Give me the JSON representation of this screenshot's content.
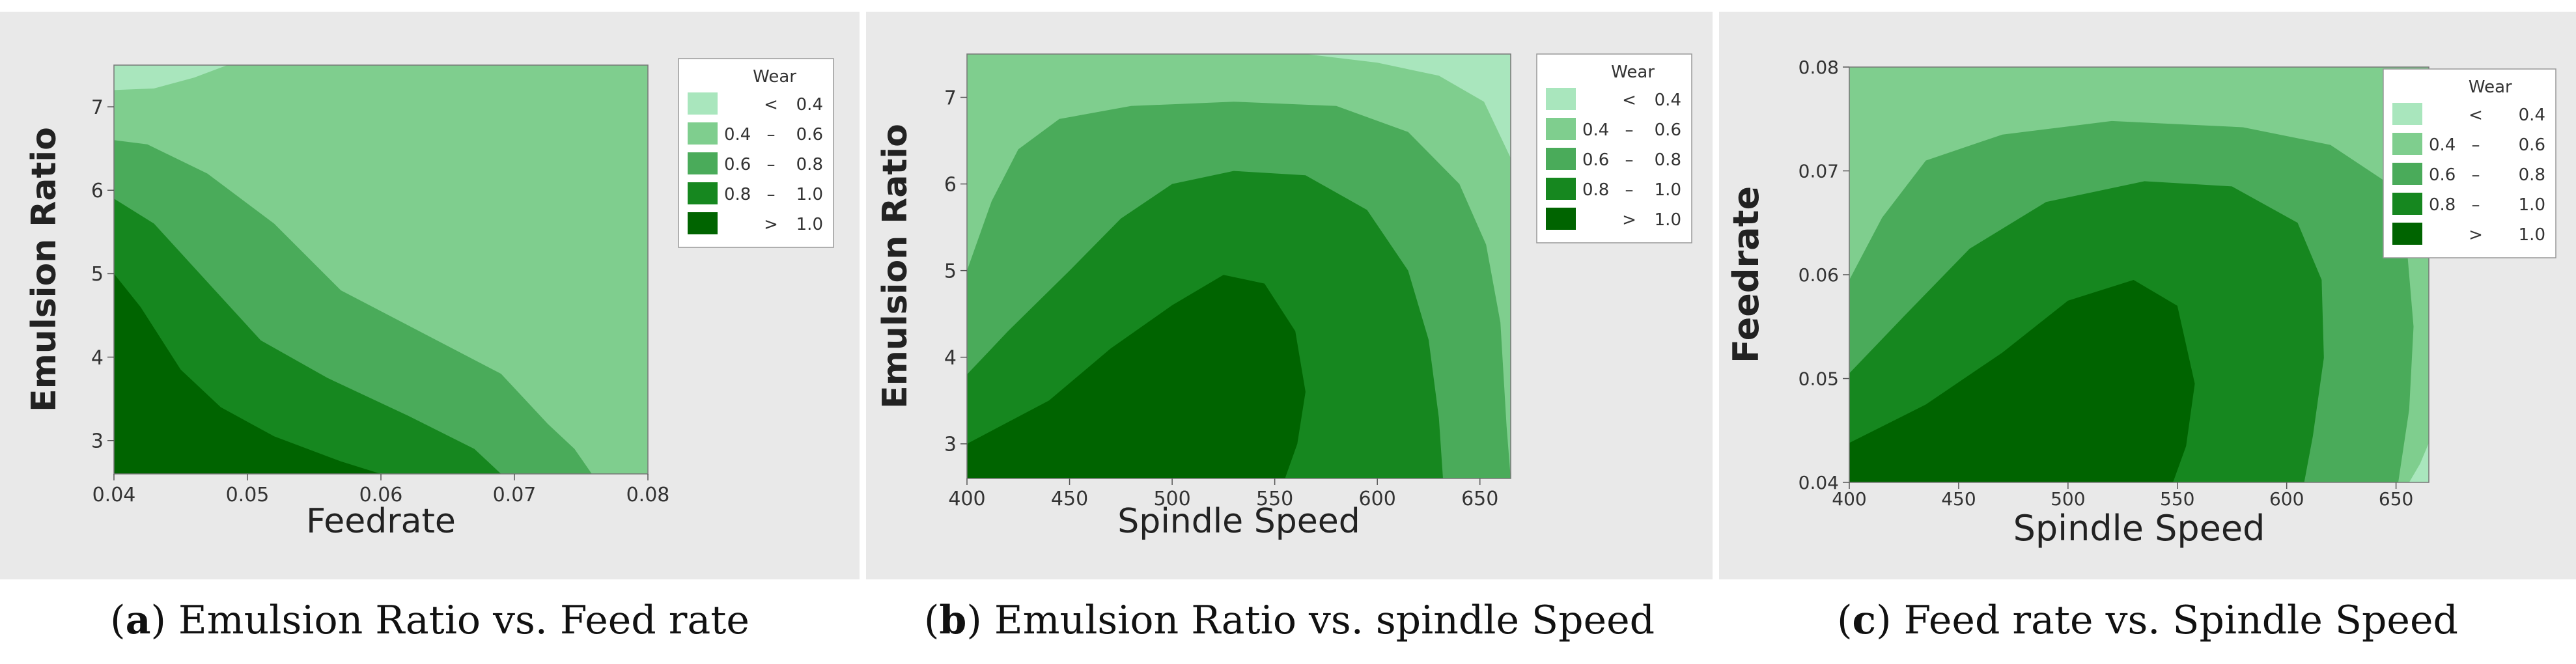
{
  "legend": {
    "title": "Wear",
    "colors": [
      "#a9e6bd",
      "#7fce8e",
      "#4aab5a",
      "#16871f",
      "#006400"
    ],
    "entries": [
      {
        "lo": "",
        "sep": "<",
        "hi": "0.4"
      },
      {
        "lo": "0.4",
        "sep": "–",
        "hi": "0.6"
      },
      {
        "lo": "0.6",
        "sep": "–",
        "hi": "0.8"
      },
      {
        "lo": "0.8",
        "sep": "–",
        "hi": "1.0"
      },
      {
        "lo": "",
        "sep": ">",
        "hi": "1.0"
      }
    ]
  },
  "chart_data": [
    {
      "type": "contour",
      "xlabel": "Feedrate",
      "ylabel": "Emulsion Ratio",
      "xlim": [
        0.04,
        0.08
      ],
      "ylim": [
        2.6,
        7.5
      ],
      "xticks": [
        "0.04",
        "0.05",
        "0.06",
        "0.07",
        "0.08"
      ],
      "yticks": [
        "3",
        "4",
        "5",
        "6",
        "7"
      ],
      "xtick_values": [
        0.04,
        0.05,
        0.06,
        0.07,
        0.08
      ],
      "ytick_values": [
        3,
        4,
        5,
        6,
        7
      ],
      "caption_letter": "a",
      "caption_text": ") Emulsion Ratio vs. Feed rate",
      "background_level": 1,
      "regions": [
        {
          "level": 0,
          "points": [
            [
              0.04,
              7.5
            ],
            [
              0.0485,
              7.5
            ],
            [
              0.046,
              7.35
            ],
            [
              0.043,
              7.22
            ],
            [
              0.04,
              7.2
            ]
          ]
        },
        {
          "level": 2,
          "points": [
            [
              0.04,
              6.6
            ],
            [
              0.0425,
              6.55
            ],
            [
              0.047,
              6.2
            ],
            [
              0.052,
              5.6
            ],
            [
              0.057,
              4.8
            ],
            [
              0.063,
              4.3
            ],
            [
              0.069,
              3.8
            ],
            [
              0.0725,
              3.2
            ],
            [
              0.0745,
              2.9
            ],
            [
              0.0758,
              2.6
            ],
            [
              0.04,
              2.6
            ]
          ]
        },
        {
          "level": 3,
          "points": [
            [
              0.04,
              5.9
            ],
            [
              0.043,
              5.6
            ],
            [
              0.047,
              4.9
            ],
            [
              0.051,
              4.2
            ],
            [
              0.056,
              3.75
            ],
            [
              0.062,
              3.3
            ],
            [
              0.067,
              2.9
            ],
            [
              0.069,
              2.6
            ],
            [
              0.04,
              2.6
            ]
          ]
        },
        {
          "level": 4,
          "points": [
            [
              0.04,
              5.0
            ],
            [
              0.042,
              4.6
            ],
            [
              0.045,
              3.85
            ],
            [
              0.048,
              3.4
            ],
            [
              0.052,
              3.05
            ],
            [
              0.057,
              2.75
            ],
            [
              0.06,
              2.6
            ],
            [
              0.04,
              2.6
            ]
          ]
        }
      ]
    },
    {
      "type": "contour",
      "xlabel": "Spindle Speed",
      "ylabel": "Emulsion Ratio",
      "xlim": [
        400,
        665
      ],
      "ylim": [
        2.6,
        7.5
      ],
      "xticks": [
        "400",
        "450",
        "500",
        "550",
        "600",
        "650"
      ],
      "yticks": [
        "3",
        "4",
        "5",
        "6",
        "7"
      ],
      "xtick_values": [
        400,
        450,
        500,
        550,
        600,
        650
      ],
      "ytick_values": [
        3,
        4,
        5,
        6,
        7
      ],
      "caption_letter": "b",
      "caption_text": ") Emulsion Ratio vs. spindle Speed",
      "background_level": 1,
      "regions": [
        {
          "level": 0,
          "points": [
            [
              565,
              7.5
            ],
            [
              665,
              7.5
            ],
            [
              665,
              6.3
            ],
            [
              652,
              6.95
            ],
            [
              630,
              7.25
            ],
            [
              600,
              7.4
            ]
          ]
        },
        {
          "level": 2,
          "points": [
            [
              400,
              5.0
            ],
            [
              412,
              5.8
            ],
            [
              425,
              6.4
            ],
            [
              445,
              6.75
            ],
            [
              480,
              6.9
            ],
            [
              530,
              6.95
            ],
            [
              580,
              6.9
            ],
            [
              615,
              6.6
            ],
            [
              640,
              6.0
            ],
            [
              653,
              5.3
            ],
            [
              660,
              4.4
            ],
            [
              663,
              3.2
            ],
            [
              665,
              2.6
            ],
            [
              400,
              2.6
            ]
          ]
        },
        {
          "level": 3,
          "points": [
            [
              400,
              3.8
            ],
            [
              420,
              4.3
            ],
            [
              450,
              5.0
            ],
            [
              475,
              5.6
            ],
            [
              500,
              6.0
            ],
            [
              530,
              6.15
            ],
            [
              565,
              6.1
            ],
            [
              595,
              5.7
            ],
            [
              615,
              5.0
            ],
            [
              625,
              4.2
            ],
            [
              630,
              3.3
            ],
            [
              632,
              2.6
            ],
            [
              400,
              2.6
            ]
          ]
        },
        {
          "level": 4,
          "points": [
            [
              400,
              3.0
            ],
            [
              440,
              3.5
            ],
            [
              470,
              4.1
            ],
            [
              500,
              4.6
            ],
            [
              525,
              4.95
            ],
            [
              545,
              4.85
            ],
            [
              560,
              4.3
            ],
            [
              565,
              3.6
            ],
            [
              561,
              3.0
            ],
            [
              555,
              2.6
            ],
            [
              400,
              2.6
            ]
          ]
        }
      ]
    },
    {
      "type": "contour",
      "xlabel": "Spindle Speed",
      "ylabel": "Feedrate",
      "xlim": [
        400,
        665
      ],
      "ylim": [
        0.04,
        0.08
      ],
      "xticks": [
        "400",
        "450",
        "500",
        "550",
        "600",
        "650"
      ],
      "yticks": [
        "0.04",
        "0.05",
        "0.06",
        "0.07",
        "0.08"
      ],
      "xtick_values": [
        400,
        450,
        500,
        550,
        600,
        650
      ],
      "ytick_values": [
        0.04,
        0.05,
        0.06,
        0.07,
        0.08
      ],
      "caption_letter": "c",
      "caption_text": ") Feed rate vs. Spindle Speed",
      "background_level": 1,
      "regions": [
        {
          "level": 0,
          "points": [
            [
              656,
              0.04
            ],
            [
              665,
              0.04
            ],
            [
              665,
              0.0438
            ],
            [
              661,
              0.0418
            ]
          ]
        },
        {
          "level": 2,
          "points": [
            [
              400,
              0.0595
            ],
            [
              415,
              0.0655
            ],
            [
              435,
              0.071
            ],
            [
              470,
              0.0735
            ],
            [
              520,
              0.0748
            ],
            [
              580,
              0.0742
            ],
            [
              620,
              0.0725
            ],
            [
              645,
              0.069
            ],
            [
              655,
              0.0625
            ],
            [
              658,
              0.055
            ],
            [
              656,
              0.047
            ],
            [
              651,
              0.04
            ],
            [
              400,
              0.04
            ]
          ]
        },
        {
          "level": 3,
          "points": [
            [
              400,
              0.0505
            ],
            [
              425,
              0.056
            ],
            [
              455,
              0.0625
            ],
            [
              490,
              0.067
            ],
            [
              535,
              0.069
            ],
            [
              575,
              0.0685
            ],
            [
              605,
              0.065
            ],
            [
              616,
              0.0595
            ],
            [
              617,
              0.052
            ],
            [
              612,
              0.0445
            ],
            [
              608,
              0.04
            ],
            [
              400,
              0.04
            ]
          ]
        },
        {
          "level": 4,
          "points": [
            [
              400,
              0.0438
            ],
            [
              435,
              0.0475
            ],
            [
              470,
              0.0525
            ],
            [
              500,
              0.0575
            ],
            [
              530,
              0.0595
            ],
            [
              550,
              0.057
            ],
            [
              558,
              0.0495
            ],
            [
              554,
              0.0435
            ],
            [
              548,
              0.04
            ],
            [
              400,
              0.04
            ]
          ]
        }
      ]
    }
  ]
}
